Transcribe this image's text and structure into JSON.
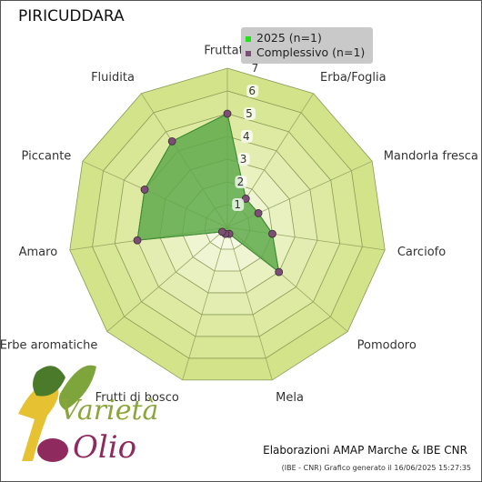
{
  "title": "PIRICUDDARA",
  "legend": {
    "items": [
      {
        "label": "2025 (n=1)",
        "color": "#22e01a"
      },
      {
        "label": "Complessivo (n=1)",
        "color": "#7b4f73"
      }
    ]
  },
  "footer": {
    "credit": "Elaborazioni AMAP Marche & IBE CNR",
    "generated": "(IBE - CNR) Grafico generato il 16/06/2025 15:27:35"
  },
  "logo": {
    "text_top": "Varietà",
    "text_bottom": "Olio"
  },
  "colors": {
    "ring_outer": "#d6e58f",
    "ring_inner": "#f3f7dc",
    "series_fill": "#5ea94a",
    "series_stroke": "#3e8a35",
    "point": "#7b4f73"
  },
  "chart_data": {
    "type": "radar",
    "axes": [
      "Fruttato",
      "Erba/Foglia",
      "Mandorla fresca",
      "Carciofo",
      "Pomodoro",
      "Mela",
      "Frutti di bosco",
      "Erbe aromatiche",
      "Amaro",
      "Piccante",
      "Fluidita"
    ],
    "rlim": [
      0,
      7
    ],
    "ticks": [
      "1",
      "2",
      "3",
      "4",
      "5",
      "6",
      "7"
    ],
    "series": [
      {
        "name": "2025 (n=1)",
        "values": [
          5.0,
          1.5,
          1.5,
          2.0,
          3.0,
          0.3,
          0.3,
          0.3,
          4.0,
          4.0,
          4.5
        ]
      },
      {
        "name": "Complessivo (n=1)",
        "values": [
          5.0,
          1.5,
          1.5,
          2.0,
          3.0,
          0.3,
          0.3,
          0.3,
          4.0,
          4.0,
          4.5
        ]
      }
    ]
  }
}
